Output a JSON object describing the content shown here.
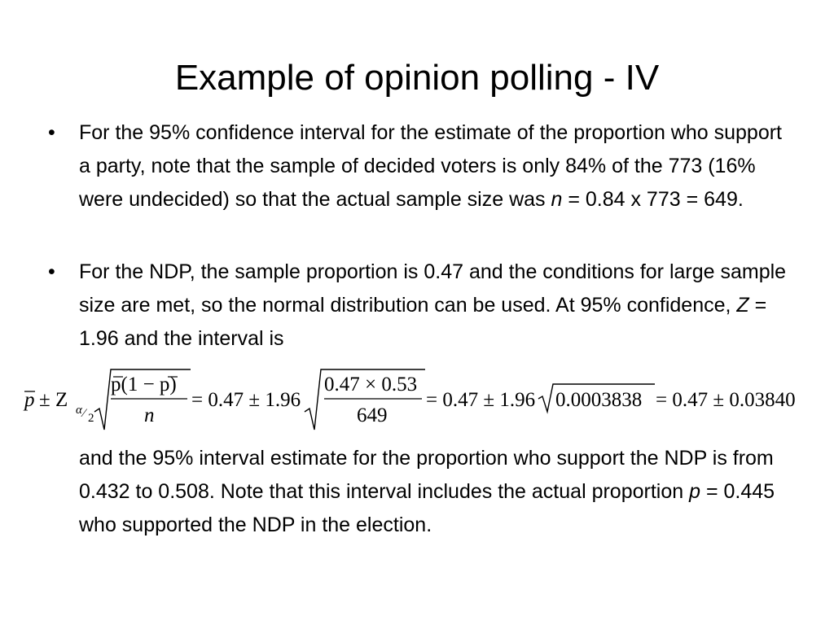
{
  "title": "Example of opinion polling - IV",
  "bullets": [
    {
      "marker": "•",
      "text_1": "For the 95% confidence interval for the estimate of the proportion who support a party, note that the sample of decided voters is only 84% of the 773 (16% were undecided) so that the actual sample size was ",
      "var": "n",
      "text_2": " = 0.84 x 773 = 649."
    },
    {
      "marker": "•",
      "text_1": "For the NDP, the sample proportion is 0.47 and the conditions for large sample size are met, so the normal distribution can be used.  At 95% confidence, ",
      "var": "Z",
      "text_2": " = 1.96 and the interval is"
    }
  ],
  "formula": {
    "p_bar": "p",
    "pm_z": "± Z",
    "sub_num": "α",
    "sub_slash": "⁄",
    "sub_den": "2",
    "frac1_num": "p(1 − p)",
    "frac1_den": "n",
    "eq1": "= 0.47 ± 1.96",
    "frac2_num": "0.47 × 0.53",
    "frac2_den": "649",
    "eq2": "= 0.47 ± 1.96",
    "rad3": "0.0003838",
    "eq3": "= 0.47 ± 0.03840"
  },
  "closing": {
    "text_1": "and the 95% interval estimate for the proportion who support the NDP is from 0.432 to 0.508.   Note that this interval includes the actual proportion ",
    "var": "p",
    "text_2": " = 0.445 who supported the NDP in the election."
  }
}
